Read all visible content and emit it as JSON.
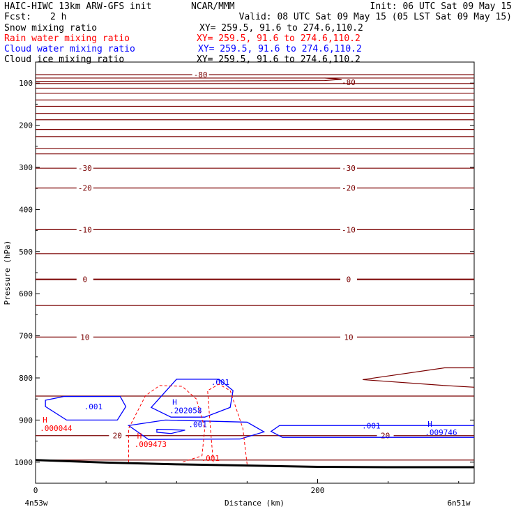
{
  "header": {
    "model": "HAIC-HIWC 13km ARW-GFS init",
    "org": "NCAR/MMM",
    "init": "Init: 06 UTC Sat 09 May 15",
    "fcst_label": "Fcst:",
    "fcst_value": "2 h",
    "valid": "Valid: 08 UTC Sat 09 May 15 (05 LST Sat 09 May 15)",
    "fields": [
      {
        "name": "Snow mixing ratio",
        "xy": "XY= 259.5, 91.6 to 274.6,110.2",
        "color": "#000000"
      },
      {
        "name": "Rain water mixing ratio",
        "xy": "XY= 259.5, 91.6 to 274.6,110.2",
        "color": "#ff0000"
      },
      {
        "name": "Cloud water mixing ratio",
        "xy": "XY= 259.5, 91.6 to 274.6,110.2",
        "color": "#0000ff"
      },
      {
        "name": "Cloud ice mixing ratio",
        "xy": "XY= 259.5, 91.6 to 274.6,110.2",
        "color": "#000000"
      }
    ]
  },
  "chart_data": {
    "type": "line",
    "ylabel": "Pressure (hPa)",
    "xlabel": "Distance (km)",
    "x_start_label": "4n53w",
    "x_end_label": "6n51w",
    "xlim": [
      0,
      311
    ],
    "ylim": [
      1050,
      50
    ],
    "x_ticks": [
      0,
      200
    ],
    "y_ticks": [
      100,
      200,
      300,
      400,
      500,
      600,
      700,
      800,
      900,
      1000
    ],
    "colors": {
      "temp": "#7a0000",
      "rain": "#ff0000",
      "cloud": "#0000ff",
      "terrain": "#000000"
    },
    "isotherms": [
      {
        "p": 80,
        "labels": [
          {
            "x": 117,
            "p": 80,
            "text": "-80"
          },
          {
            "x": 222,
            "p": 98,
            "text": "-80"
          }
        ]
      },
      {
        "p": 88,
        "labels": []
      },
      {
        "p": 101,
        "labels": []
      },
      {
        "p": 112,
        "labels": []
      },
      {
        "p": 124,
        "labels": []
      },
      {
        "p": 140,
        "labels": []
      },
      {
        "p": 155,
        "labels": []
      },
      {
        "p": 172,
        "labels": []
      },
      {
        "p": 187,
        "labels": []
      },
      {
        "p": 210,
        "labels": []
      },
      {
        "p": 227,
        "labels": []
      },
      {
        "p": 255,
        "labels": []
      },
      {
        "p": 268,
        "labels": []
      },
      {
        "p": 302,
        "labels": [
          {
            "x": 35,
            "p": 302,
            "text": "-30"
          },
          {
            "x": 222,
            "p": 302,
            "text": "-30"
          }
        ]
      },
      {
        "p": 349,
        "labels": [
          {
            "x": 35,
            "p": 349,
            "text": "-20"
          },
          {
            "x": 222,
            "p": 349,
            "text": "-20"
          }
        ]
      },
      {
        "p": 448,
        "labels": [
          {
            "x": 35,
            "p": 448,
            "text": "-10"
          },
          {
            "x": 222,
            "p": 448,
            "text": "-10"
          }
        ]
      },
      {
        "p": 505,
        "labels": []
      },
      {
        "p": 566,
        "labels": [
          {
            "x": 35,
            "p": 566,
            "text": "0"
          },
          {
            "x": 222,
            "p": 566,
            "text": "0"
          }
        ]
      },
      {
        "p": 628,
        "labels": []
      },
      {
        "p": 703,
        "labels": [
          {
            "x": 35,
            "p": 703,
            "text": "10"
          },
          {
            "x": 222,
            "p": 703,
            "text": "10"
          }
        ]
      },
      {
        "p": 843,
        "labels": []
      },
      {
        "p": 937,
        "labels": [
          {
            "x": 58,
            "p": 937,
            "text": "20"
          },
          {
            "x": 248,
            "p": 937,
            "text": "20"
          }
        ]
      },
      {
        "p": 995,
        "labels": []
      }
    ],
    "cloud_labels": [
      {
        "x": 41,
        "p": 868,
        "text": ".001"
      },
      {
        "x": 131,
        "p": 810,
        "text": ".001"
      },
      {
        "x": 115,
        "p": 910,
        "text": ".001"
      },
      {
        "x": 238,
        "p": 913,
        "text": ".001"
      }
    ],
    "rain_labels": [
      {
        "x": 124,
        "p": 990,
        "text": ".001"
      }
    ],
    "maxima": [
      {
        "x": 5,
        "p": 906,
        "mark": "H",
        "value": ".000044",
        "color": "#ff0000"
      },
      {
        "x": 97,
        "p": 864,
        "mark": "H",
        "value": ".202058",
        "color": "#0000ff"
      },
      {
        "x": 72,
        "p": 944,
        "mark": "H",
        "value": ".009473",
        "color": "#ff0000"
      },
      {
        "x": 278,
        "p": 916,
        "mark": "H",
        "value": ".009746",
        "color": "#0000ff"
      }
    ],
    "terrain": [
      [
        0,
        995
      ],
      [
        50,
        1001
      ],
      [
        100,
        1005
      ],
      [
        150,
        1008
      ],
      [
        200,
        1011
      ],
      [
        250,
        1012
      ],
      [
        311,
        1012
      ]
    ]
  }
}
